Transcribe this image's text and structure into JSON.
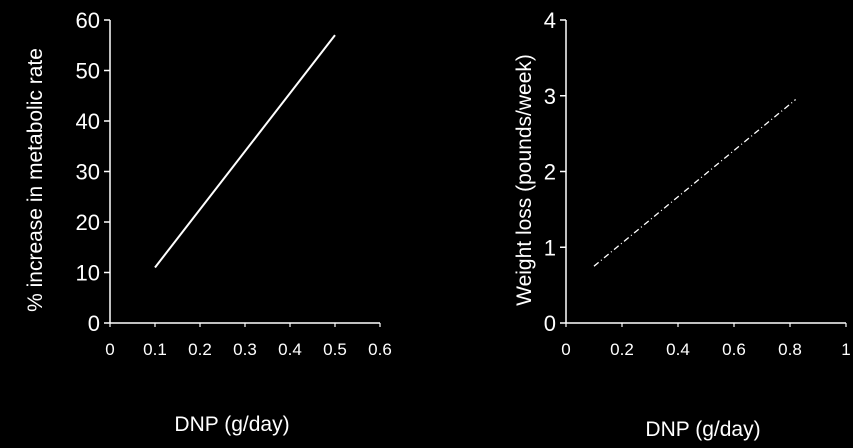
{
  "chart_data": [
    {
      "type": "line",
      "title": "",
      "xlabel": "DNP (g/day)",
      "ylabel": "% increase in metabolic rate",
      "xlim": [
        0,
        0.6
      ],
      "ylim": [
        0,
        60
      ],
      "x_ticks": [
        "0",
        "0.1",
        "0.2",
        "0.3",
        "0.4",
        "0.5",
        "0.6"
      ],
      "y_ticks": [
        "0",
        "10",
        "20",
        "30",
        "40",
        "50",
        "60"
      ],
      "grid": false,
      "series": [
        {
          "x": [
            0.1,
            0.5
          ],
          "y": [
            11,
            57
          ],
          "color": "#ffffff",
          "style": "solid"
        }
      ]
    },
    {
      "type": "line",
      "title": "",
      "xlabel": "DNP (g/day)",
      "ylabel": "Weight loss (pounds/week)",
      "xlim": [
        0,
        1
      ],
      "ylim": [
        0,
        4
      ],
      "x_ticks": [
        "0",
        "0.2",
        "0.4",
        "0.6",
        "0.8",
        "1"
      ],
      "y_ticks": [
        "0",
        "1",
        "2",
        "3",
        "4"
      ],
      "grid": false,
      "series": [
        {
          "x": [
            0.1,
            0.82
          ],
          "y": [
            0.75,
            2.95
          ],
          "color": "#ffffff",
          "style": "dashed"
        }
      ]
    }
  ],
  "colors": {
    "background": "#000000",
    "foreground": "#ffffff"
  }
}
